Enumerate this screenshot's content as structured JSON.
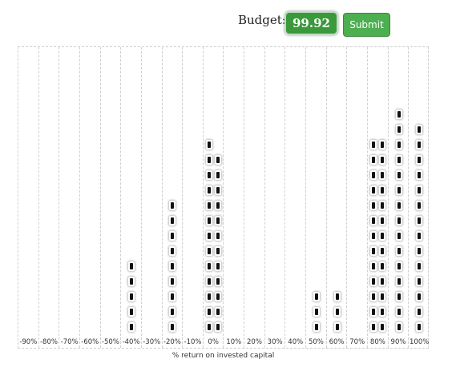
{
  "header": {
    "budget_label": "Budget:",
    "budget_value": "99.92",
    "submit_label": "Submit"
  },
  "chart": {
    "xlabel": "% return on invested capital",
    "bins": [
      {
        "label": "-90%",
        "columns": []
      },
      {
        "label": "-80%",
        "columns": []
      },
      {
        "label": "-70%",
        "columns": []
      },
      {
        "label": "-60%",
        "columns": []
      },
      {
        "label": "-50%",
        "columns": []
      },
      {
        "label": "-40%",
        "columns": [
          5
        ]
      },
      {
        "label": "-30%",
        "columns": []
      },
      {
        "label": "-20%",
        "columns": [
          9
        ]
      },
      {
        "label": "-10%",
        "columns": []
      },
      {
        "label": "0%",
        "columns": [
          13,
          12
        ]
      },
      {
        "label": "10%",
        "columns": []
      },
      {
        "label": "20%",
        "columns": []
      },
      {
        "label": "30%",
        "columns": []
      },
      {
        "label": "40%",
        "columns": []
      },
      {
        "label": "50%",
        "columns": [
          3
        ]
      },
      {
        "label": "60%",
        "columns": [
          3
        ]
      },
      {
        "label": "70%",
        "columns": []
      },
      {
        "label": "80%",
        "columns": [
          13,
          13
        ]
      },
      {
        "label": "90%",
        "columns": [
          15
        ]
      },
      {
        "label": "100%",
        "columns": [
          14
        ]
      }
    ]
  }
}
